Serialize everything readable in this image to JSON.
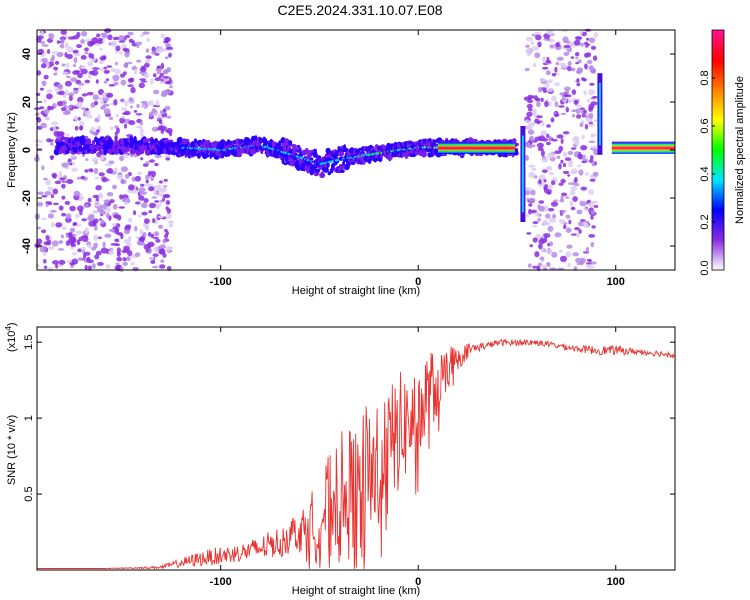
{
  "figure": {
    "title": "C2E5.2024.331.10.07.E08"
  },
  "chart_data": [
    {
      "type": "heatmap",
      "xlabel": "Height of straight line (km)",
      "ylabel": "Frequency (Hz)",
      "xlim": [
        -193,
        130
      ],
      "ylim": [
        -50,
        50
      ],
      "x_ticks": [
        -100,
        0,
        100
      ],
      "y_ticks": [
        -40,
        -20,
        0,
        20,
        40
      ],
      "colorbar": {
        "label": "Normalized spectral amplitude",
        "range": [
          0,
          1
        ],
        "ticks": [
          0.2,
          0.4,
          0.6,
          0.8
        ],
        "zero_label": "0.0",
        "colors": [
          "#ffffff",
          "#8a2be2",
          "#0000ff",
          "#00e5ff",
          "#00ff00",
          "#ffff00",
          "#ff7f00",
          "#ff0000",
          "#ff1493"
        ]
      },
      "ridge": [
        {
          "x": -180,
          "y": 2
        },
        {
          "x": -150,
          "y": 2
        },
        {
          "x": -120,
          "y": 1
        },
        {
          "x": -100,
          "y": 0
        },
        {
          "x": -80,
          "y": 2
        },
        {
          "x": -60,
          "y": -3
        },
        {
          "x": -50,
          "y": -6
        },
        {
          "x": -40,
          "y": -4
        },
        {
          "x": -25,
          "y": -2
        },
        {
          "x": -10,
          "y": 0
        },
        {
          "x": 0,
          "y": 1
        },
        {
          "x": 20,
          "y": 1
        },
        {
          "x": 40,
          "y": 1
        },
        {
          "x": 50,
          "y": 1
        }
      ],
      "carrier_segments": [
        [
          10,
          49
        ],
        [
          98,
          130
        ]
      ],
      "vertical_streaks": [
        {
          "x": 53,
          "ymin": -30,
          "ymax": 10
        },
        {
          "x": 92,
          "ymin": -2,
          "ymax": 32
        }
      ],
      "noise_bands": [
        [
          -193,
          -125
        ],
        [
          55,
          90
        ]
      ]
    },
    {
      "type": "line",
      "xlabel": "Height of straight line (km)",
      "ylabel": "SNR (10 * v/v)",
      "y_multiplier": "(x10",
      "y_multiplier_exp": "4",
      "xlim": [
        -193,
        130
      ],
      "ylim": [
        0,
        1.6
      ],
      "x_ticks": [
        -100,
        0,
        100
      ],
      "y_ticks": [
        0.5,
        1.0,
        1.5
      ],
      "series": [
        {
          "color": "#e8322f",
          "x": [
            -193,
            -180,
            -160,
            -140,
            -130,
            -120,
            -110,
            -100,
            -90,
            -80,
            -70,
            -60,
            -55,
            -50,
            -45,
            -40,
            -35,
            -30,
            -25,
            -20,
            -15,
            -10,
            -5,
            0,
            5,
            10,
            15,
            20,
            25,
            30,
            35,
            40,
            50,
            60,
            70,
            80,
            90,
            100,
            110,
            120,
            130
          ],
          "y": [
            0.01,
            0.01,
            0.01,
            0.015,
            0.02,
            0.05,
            0.08,
            0.1,
            0.12,
            0.15,
            0.2,
            0.28,
            0.25,
            0.4,
            0.45,
            0.5,
            0.55,
            0.45,
            0.7,
            0.75,
            0.8,
            0.95,
            1.0,
            1.05,
            1.15,
            1.25,
            1.35,
            1.4,
            1.45,
            1.47,
            1.48,
            1.5,
            1.5,
            1.5,
            1.48,
            1.46,
            1.45,
            1.45,
            1.44,
            1.43,
            1.42
          ],
          "spread": [
            0.0,
            0.0,
            0.0,
            0.005,
            0.01,
            0.03,
            0.05,
            0.06,
            0.06,
            0.08,
            0.1,
            0.15,
            0.25,
            0.3,
            0.35,
            0.45,
            0.45,
            0.5,
            0.55,
            0.5,
            0.45,
            0.4,
            0.35,
            0.3,
            0.35,
            0.2,
            0.15,
            0.08,
            0.05,
            0.03,
            0.02,
            0.02,
            0.02,
            0.02,
            0.02,
            0.02,
            0.03,
            0.03,
            0.02,
            0.02,
            0.02
          ]
        }
      ]
    }
  ]
}
